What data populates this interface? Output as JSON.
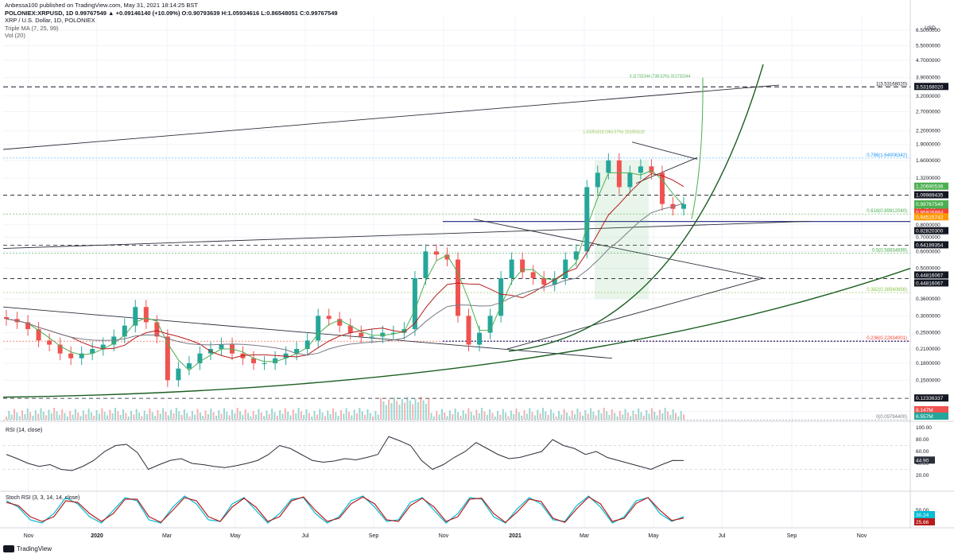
{
  "header": {
    "publisher": "Anbessa100 published on TradingView.com, May 31, 2021 18:14:25 BST",
    "symbol_line": "POLONIEX:XRPUSD, 1D 0.99767549 ▲ +0.09146140 (+10.09%) O:0.90793639 H:1.05934616 L:0.86548051 C:0.99767549",
    "title": "XRP / U.S. Dollar, 1D, POLONIEX",
    "indicator_ma": "Triple MA (7, 25, 99)",
    "indicator_vol": "Vol (20)"
  },
  "footer": {
    "brand": "TradingView"
  },
  "colors": {
    "up": "#26a69a",
    "down": "#ef5350",
    "price_black": "#131722",
    "fib_green": "#4caf50",
    "fib_red": "#f44336",
    "blue_line": "#1a237e",
    "rsi": "#2a2e39",
    "stoch_k": "#00bcd4",
    "stoch_d": "#b71c1c"
  },
  "chart_data": [
    {
      "type": "line",
      "title": "XRP / U.S. Dollar, 1D, POLONIEX",
      "scale": "log",
      "currency_label": "USD",
      "y_ticks": [
        "6.5000000",
        "5.5000000",
        "4.7000000",
        "3.9000000",
        "3.2000000",
        "2.7000000",
        "2.2000000",
        "1.9000000",
        "1.6000000",
        "1.3200000",
        "0.8000000",
        "0.7000000",
        "0.6000000",
        "0.5000000",
        "0.3600000",
        "0.3000000",
        "0.2500000",
        "0.2100000",
        "0.1800000",
        "0.1500000",
        "0.1070000"
      ],
      "x_ticks": [
        "Nov",
        "2020",
        "Mar",
        "May",
        "Jul",
        "Sep",
        "Nov",
        "2021",
        "Mar",
        "May",
        "Jul",
        "Sep",
        "Nov"
      ],
      "price_labels": [
        {
          "value": "3.53168020",
          "color": "#131722"
        },
        {
          "value": "1.20690536",
          "color": "#4caf50"
        },
        {
          "value": "1.09989435",
          "color": "#131722"
        },
        {
          "value": "0.99767549",
          "color": "#4caf50"
        },
        {
          "value": "06:45:38",
          "color": "#4caf50"
        },
        {
          "value": "0.95926884",
          "color": "#f44336"
        },
        {
          "value": "0.94515742",
          "color": "#ff9800"
        },
        {
          "value": "0.82820300",
          "color": "#131722"
        },
        {
          "value": "0.64189354",
          "color": "#131722"
        },
        {
          "value": "0.44816067",
          "color": "#131722"
        },
        {
          "value": "0.44816067",
          "color": "#131722"
        },
        {
          "value": "0.12336337",
          "color": "#131722"
        },
        {
          "value": "8.147M",
          "color": "#ef5350"
        },
        {
          "value": "6.557M",
          "color": "#26a69a"
        }
      ],
      "fib_levels": [
        {
          "text": "1(3.53168020)",
          "color": "#131722"
        },
        {
          "text": "0.786(1.64006342)",
          "color": "#2196f3"
        },
        {
          "text": "0.618(0.89812040)",
          "color": "#4caf50"
        },
        {
          "text": "0.5(0.58834699)",
          "color": "#4caf50"
        },
        {
          "text": "0.382(0.38540656)",
          "color": "#8bc34a"
        },
        {
          "text": "0.236(0.22834001)",
          "color": "#f44336"
        },
        {
          "text": "0(0.09794400)",
          "color": "#787b86"
        }
      ],
      "annotations": [
        "3.11732344 (738.52%) 311732344",
        "1.53351618 (363.07%) 153351618"
      ],
      "series": [
        {
          "name": "XRP/USD close",
          "values": [
            0.29,
            0.28,
            0.26,
            0.23,
            0.22,
            0.2,
            0.19,
            0.2,
            0.21,
            0.22,
            0.24,
            0.27,
            0.33,
            0.28,
            0.24,
            0.15,
            0.17,
            0.18,
            0.2,
            0.21,
            0.22,
            0.2,
            0.19,
            0.18,
            0.18,
            0.19,
            0.2,
            0.21,
            0.23,
            0.3,
            0.29,
            0.27,
            0.25,
            0.24,
            0.24,
            0.25,
            0.25,
            0.26,
            0.45,
            0.6,
            0.58,
            0.55,
            0.3,
            0.22,
            0.25,
            0.3,
            0.45,
            0.55,
            0.48,
            0.45,
            0.42,
            0.45,
            0.55,
            0.6,
            1.2,
            1.4,
            1.6,
            1.2,
            1.4,
            1.5,
            1.4,
            1.0,
            0.95,
            0.998
          ]
        }
      ]
    },
    {
      "type": "line",
      "title": "RSI (14, close)",
      "y_ticks": [
        "100.00",
        "80.00",
        "60.00",
        "40.00",
        "20.00"
      ],
      "value_label": "44.90",
      "series": [
        {
          "name": "RSI (14, close)",
          "values": [
            55,
            48,
            40,
            35,
            38,
            30,
            28,
            35,
            45,
            60,
            70,
            72,
            58,
            30,
            38,
            45,
            48,
            40,
            38,
            35,
            33,
            36,
            40,
            45,
            55,
            70,
            65,
            55,
            45,
            42,
            44,
            48,
            46,
            50,
            55,
            85,
            78,
            70,
            45,
            30,
            38,
            50,
            60,
            75,
            65,
            55,
            48,
            50,
            55,
            60,
            80,
            70,
            65,
            55,
            60,
            50,
            45,
            40,
            35,
            30,
            38,
            45,
            44.9
          ]
        }
      ]
    },
    {
      "type": "line",
      "title": "Stoch RSI (3, 3, 14, 14, close)",
      "y_ticks": [
        "50.00"
      ],
      "value_labels": [
        "30.24",
        "25.66"
      ],
      "series": [
        {
          "name": "K",
          "values": [
            80,
            60,
            20,
            10,
            40,
            90,
            70,
            30,
            10,
            50,
            90,
            80,
            20,
            10,
            60,
            95,
            70,
            20,
            15,
            70,
            90,
            50,
            10,
            40,
            85,
            90,
            40,
            10,
            30,
            80,
            95,
            60,
            15,
            20,
            75,
            90,
            50,
            10,
            40,
            90,
            85,
            30,
            10,
            55,
            90,
            70,
            20,
            15,
            65,
            95,
            60,
            10,
            30,
            80,
            90,
            40,
            15,
            30.24
          ]
        },
        {
          "name": "D",
          "values": [
            75,
            65,
            30,
            15,
            30,
            80,
            75,
            40,
            15,
            40,
            85,
            85,
            30,
            12,
            50,
            90,
            80,
            30,
            15,
            60,
            88,
            60,
            15,
            30,
            80,
            92,
            50,
            15,
            25,
            70,
            92,
            70,
            20,
            15,
            65,
            88,
            60,
            15,
            30,
            85,
            88,
            40,
            12,
            45,
            85,
            78,
            25,
            12,
            55,
            92,
            70,
            15,
            25,
            72,
            90,
            50,
            18,
            25.66
          ]
        }
      ]
    }
  ]
}
